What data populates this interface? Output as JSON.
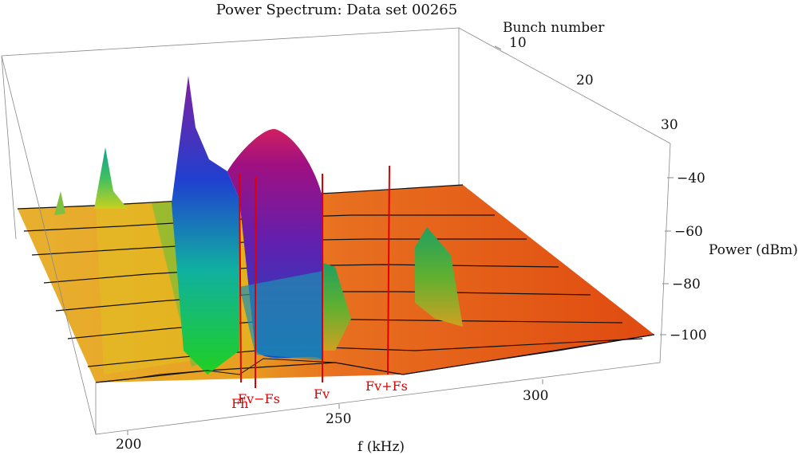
{
  "chart_data": {
    "type": "surface-3d",
    "title": "Power Spectrum: Data set 00265",
    "axes": {
      "x": {
        "label": "f (kHz)",
        "ticks": [
          "200",
          "250",
          "300"
        ]
      },
      "y": {
        "label": "Bunch number",
        "ticks": [
          "10",
          "20",
          "30"
        ]
      },
      "z": {
        "label": "Power (dBm)",
        "ticks": [
          "−40",
          "−60",
          "−80",
          "−100"
        ]
      }
    },
    "markers": [
      "Fh",
      "Fv−Fs",
      "Fv",
      "Fv+Fs"
    ],
    "colors": {
      "marker": "#e00000",
      "floor": "#e8a020",
      "noise_high": "#e04010"
    }
  }
}
